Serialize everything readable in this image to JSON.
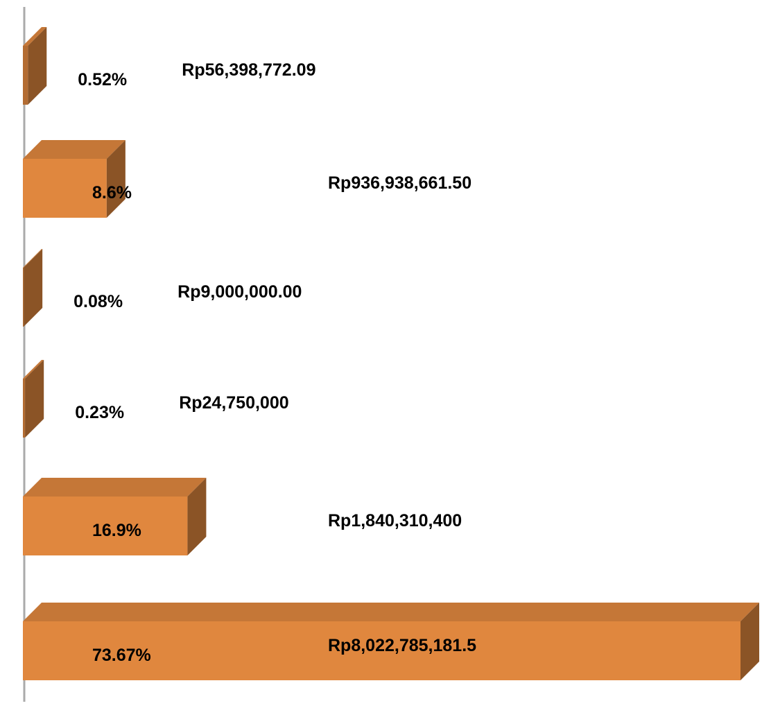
{
  "chart_data": {
    "type": "bar3d",
    "orientation": "horizontal",
    "values": [
      56398772.09,
      936938661.5,
      9000000,
      24750000,
      1840310400,
      8022785181.5
    ],
    "value_labels": [
      "Rp56,398,772.09",
      "Rp936,938,661.50",
      "Rp9,000,000.00",
      "Rp24,750,000",
      "Rp1,840,310,400",
      "Rp8,022,785,181.5"
    ],
    "percentages": [
      0.52,
      8.6,
      0.08,
      0.23,
      16.9,
      73.67
    ],
    "percentage_labels": [
      "0.52%",
      "8.6%",
      "0.08%",
      "0.23%",
      "16.9%",
      "73.67%"
    ],
    "color": "#e0873e"
  }
}
